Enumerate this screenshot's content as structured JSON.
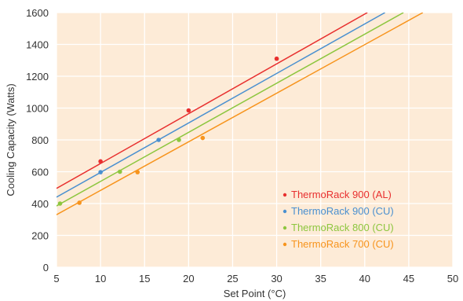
{
  "chart_data": {
    "type": "line",
    "title": "",
    "xlabel": "Set Point (°C)",
    "ylabel": "Cooling Capacity (Watts)",
    "xlim": [
      5,
      50
    ],
    "ylim": [
      0,
      1600
    ],
    "xticks": [
      5,
      10,
      15,
      20,
      25,
      30,
      35,
      40,
      45,
      50
    ],
    "yticks": [
      0,
      200,
      400,
      600,
      800,
      1000,
      1200,
      1400,
      1600
    ],
    "grid": true,
    "legend_position": "bottom-right",
    "colors": {
      "plot_background": "#fdebd7",
      "grid": "#ffffff"
    },
    "series": [
      {
        "name": "ThermoRack 900 (AL)",
        "color": "#e8302f",
        "line": {
          "x": [
            5,
            40.3
          ],
          "y": [
            495,
            1600
          ]
        },
        "points": [
          {
            "x": 10,
            "y": 665
          },
          {
            "x": 20,
            "y": 985
          },
          {
            "x": 30,
            "y": 1310
          }
        ]
      },
      {
        "name": "ThermoRack 900 (CU)",
        "color": "#4a90d0",
        "line": {
          "x": [
            5,
            42.3
          ],
          "y": [
            440,
            1600
          ]
        },
        "points": [
          {
            "x": 10,
            "y": 597
          },
          {
            "x": 16.6,
            "y": 800
          }
        ]
      },
      {
        "name": "ThermoRack 800 (CU)",
        "color": "#8dc63f",
        "line": {
          "x": [
            5,
            44.4
          ],
          "y": [
            385,
            1600
          ]
        },
        "points": [
          {
            "x": 5.4,
            "y": 400
          },
          {
            "x": 12.2,
            "y": 600
          },
          {
            "x": 18.9,
            "y": 800
          }
        ]
      },
      {
        "name": "ThermoRack 700 (CU)",
        "color": "#f7941d",
        "line": {
          "x": [
            5,
            46.6
          ],
          "y": [
            330,
            1600
          ]
        },
        "points": [
          {
            "x": 7.6,
            "y": 405
          },
          {
            "x": 14.2,
            "y": 597
          },
          {
            "x": 21.6,
            "y": 812
          }
        ]
      }
    ]
  }
}
